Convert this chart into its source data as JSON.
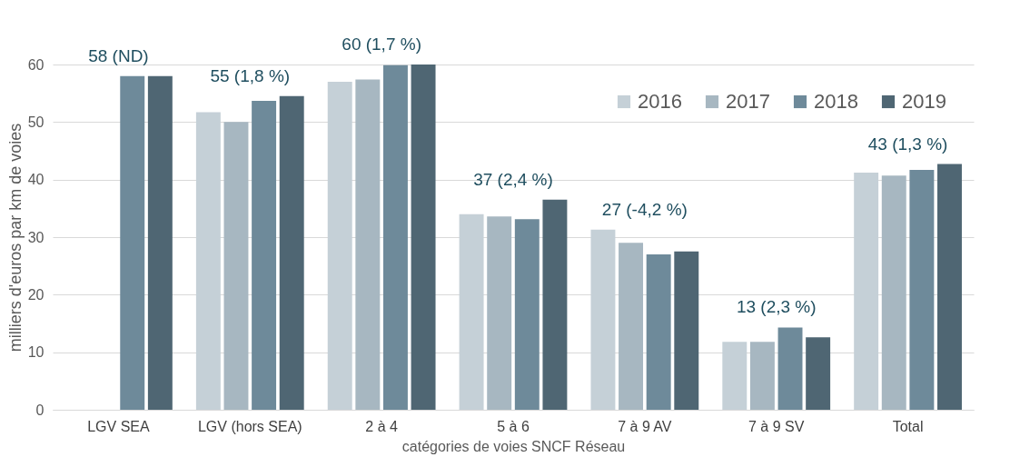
{
  "chart_data": {
    "type": "bar",
    "xlabel": "catégories de voies SNCF Réseau",
    "ylabel": "milliers d'euros par km de voies",
    "categories": [
      "LGV SEA",
      "LGV (hors SEA)",
      "2 à 4",
      "5 à 6",
      "7 à 9 AV",
      "7 à 9 SV",
      "Total"
    ],
    "series": [
      {
        "name": "2016",
        "color": "#c5d0d7",
        "values": [
          null,
          51.7,
          57,
          34,
          31.3,
          11.8,
          41.2
        ]
      },
      {
        "name": "2017",
        "color": "#a7b7c1",
        "values": [
          null,
          50,
          57.4,
          33.6,
          29,
          11.8,
          40.7
        ]
      },
      {
        "name": "2018",
        "color": "#6e8a9a",
        "values": [
          58,
          53.7,
          59.9,
          33.1,
          27,
          14.3,
          41.7
        ]
      },
      {
        "name": "2019",
        "color": "#4f6673",
        "values": [
          58,
          54.5,
          60,
          36.5,
          27.5,
          12.6,
          42.7
        ]
      }
    ],
    "annotations": [
      "58 (ND)",
      "55 (1,8 %)",
      "60 (1,7 %)",
      "37 (2,4 %)",
      "27 (-4,2 %)",
      "13 (2,3 %)",
      "43 (1,3 %)"
    ],
    "ylim": [
      0,
      60
    ],
    "yticks": [
      0,
      10,
      20,
      30,
      40,
      50,
      60
    ],
    "grid": "y",
    "legend": "top right"
  }
}
